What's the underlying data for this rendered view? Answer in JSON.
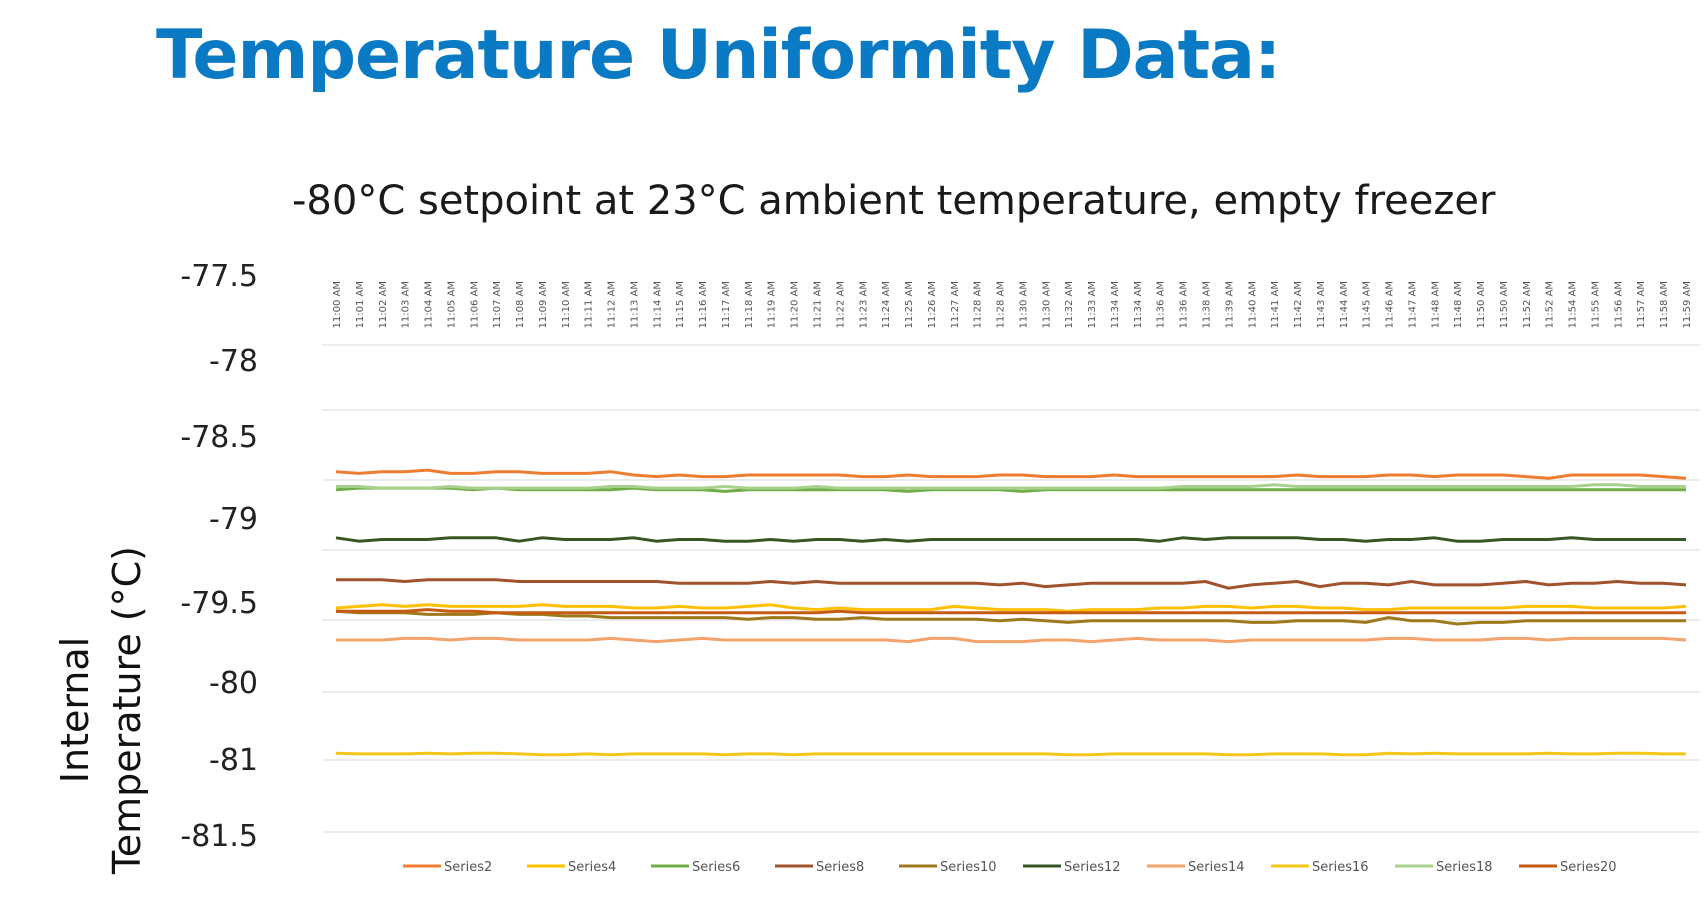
{
  "page": {
    "title": "Temperature Uniformity Data:"
  },
  "chart_data": {
    "type": "line",
    "title": "-80°C setpoint at 23°C ambient temperature, empty freezer",
    "ylabel_lines": [
      "Internal",
      "Temperature (°C)"
    ],
    "xlabel": "",
    "ylim": [
      -81.5,
      -77.5
    ],
    "y_ticks": [
      -77.5,
      -78,
      -78.5,
      -79,
      -79.5,
      -80,
      -81,
      -81.5
    ],
    "y_tick_labels": [
      "-77.5",
      "-78",
      "-78.5",
      "-79",
      "-79.5",
      "-80",
      "-81",
      "-81.5"
    ],
    "grid": true,
    "legend_position": "bottom",
    "x": [
      "11:00 AM",
      "11:01 AM",
      "11:02 AM",
      "11:03 AM",
      "11:04 AM",
      "11:05 AM",
      "11:06 AM",
      "11:07 AM",
      "11:08 AM",
      "11:09 AM",
      "11:10 AM",
      "11:11 AM",
      "11:12 AM",
      "11:13 AM",
      "11:14 AM",
      "11:15 AM",
      "11:16 AM",
      "11:17 AM",
      "11:18 AM",
      "11:19 AM",
      "11:20 AM",
      "11:21 AM",
      "11:22 AM",
      "11:23 AM",
      "11:24 AM",
      "11:25 AM",
      "11:26 AM",
      "11:27 AM",
      "11:28 AM",
      "11:28 AM",
      "11:30 AM",
      "11:30 AM",
      "11:32 AM",
      "11:33 AM",
      "11:34 AM",
      "11:34 AM",
      "11:36 AM",
      "11:36 AM",
      "11:38 AM",
      "11:39 AM",
      "11:40 AM",
      "11:41 AM",
      "11:42 AM",
      "11:43 AM",
      "11:44 AM",
      "11:45 AM",
      "11:46 AM",
      "11:47 AM",
      "11:48 AM",
      "11:48 AM",
      "11:50 AM",
      "11:50 AM",
      "11:52 AM",
      "11:52 AM",
      "11:54 AM",
      "11:55 AM",
      "11:56 AM",
      "11:57 AM",
      "11:58 AM",
      "11:59 AM"
    ],
    "series": [
      {
        "name": "Series2",
        "color": "#ed7d31",
        "values": [
          -78.73,
          -78.74,
          -78.73,
          -78.73,
          -78.72,
          -78.74,
          -78.74,
          -78.73,
          -78.73,
          -78.74,
          -78.74,
          -78.74,
          -78.73,
          -78.75,
          -78.76,
          -78.75,
          -78.76,
          -78.76,
          -78.75,
          -78.75,
          -78.75,
          -78.75,
          -78.75,
          -78.76,
          -78.76,
          -78.75,
          -78.76,
          -78.76,
          -78.76,
          -78.75,
          -78.75,
          -78.76,
          -78.76,
          -78.76,
          -78.75,
          -78.76,
          -78.76,
          -78.76,
          -78.76,
          -78.76,
          -78.76,
          -78.76,
          -78.75,
          -78.76,
          -78.76,
          -78.76,
          -78.75,
          -78.75,
          -78.76,
          -78.75,
          -78.75,
          -78.75,
          -78.76,
          -78.77,
          -78.75,
          -78.75,
          -78.75,
          -78.75,
          -78.76,
          -78.77
        ]
      },
      {
        "name": "Series4",
        "color": "#ffc000",
        "values": [
          -79.55,
          -79.54,
          -79.53,
          -79.54,
          -79.53,
          -79.54,
          -79.54,
          -79.54,
          -79.54,
          -79.53,
          -79.54,
          -79.54,
          -79.54,
          -79.55,
          -79.55,
          -79.54,
          -79.55,
          -79.55,
          -79.54,
          -79.53,
          -79.55,
          -79.56,
          -79.55,
          -79.56,
          -79.56,
          -79.56,
          -79.56,
          -79.54,
          -79.55,
          -79.56,
          -79.56,
          -79.56,
          -79.57,
          -79.56,
          -79.56,
          -79.56,
          -79.55,
          -79.55,
          -79.54,
          -79.54,
          -79.55,
          -79.54,
          -79.54,
          -79.55,
          -79.55,
          -79.56,
          -79.56,
          -79.55,
          -79.55,
          -79.55,
          -79.55,
          -79.55,
          -79.54,
          -79.54,
          -79.54,
          -79.55,
          -79.55,
          -79.55,
          -79.55,
          -79.54
        ]
      },
      {
        "name": "Series6",
        "color": "#70ad47",
        "values": [
          -78.84,
          -78.83,
          -78.83,
          -78.83,
          -78.83,
          -78.83,
          -78.84,
          -78.83,
          -78.84,
          -78.84,
          -78.84,
          -78.84,
          -78.84,
          -78.83,
          -78.84,
          -78.84,
          -78.84,
          -78.85,
          -78.84,
          -78.84,
          -78.84,
          -78.84,
          -78.84,
          -78.84,
          -78.84,
          -78.85,
          -78.84,
          -78.84,
          -78.84,
          -78.84,
          -78.85,
          -78.84,
          -78.84,
          -78.84,
          -78.84,
          -78.84,
          -78.84,
          -78.84,
          -78.84,
          -78.84,
          -78.84,
          -78.84,
          -78.84,
          -78.84,
          -78.84,
          -78.84,
          -78.84,
          -78.84,
          -78.84,
          -78.84,
          -78.84,
          -78.84,
          -78.84,
          -78.84,
          -78.84,
          -78.84,
          -78.84,
          -78.84,
          -78.84,
          -78.84
        ]
      },
      {
        "name": "Series8",
        "color": "#a0522d",
        "values": [
          -79.38,
          -79.38,
          -79.38,
          -79.39,
          -79.38,
          -79.38,
          -79.38,
          -79.38,
          -79.39,
          -79.39,
          -79.39,
          -79.39,
          -79.39,
          -79.39,
          -79.39,
          -79.4,
          -79.4,
          -79.4,
          -79.4,
          -79.39,
          -79.4,
          -79.39,
          -79.4,
          -79.4,
          -79.4,
          -79.4,
          -79.4,
          -79.4,
          -79.4,
          -79.41,
          -79.4,
          -79.42,
          -79.41,
          -79.4,
          -79.4,
          -79.4,
          -79.4,
          -79.4,
          -79.39,
          -79.43,
          -79.41,
          -79.4,
          -79.39,
          -79.42,
          -79.4,
          -79.4,
          -79.41,
          -79.39,
          -79.41,
          -79.41,
          -79.41,
          -79.4,
          -79.39,
          -79.41,
          -79.4,
          -79.4,
          -79.39,
          -79.4,
          -79.4,
          -79.41
        ]
      },
      {
        "name": "Series10",
        "color": "#9c7a1c",
        "values": [
          -79.57,
          -79.58,
          -79.58,
          -79.58,
          -79.59,
          -79.59,
          -79.59,
          -79.58,
          -79.59,
          -79.59,
          -79.6,
          -79.6,
          -79.61,
          -79.61,
          -79.61,
          -79.61,
          -79.61,
          -79.61,
          -79.62,
          -79.61,
          -79.61,
          -79.62,
          -79.62,
          -79.61,
          -79.62,
          -79.62,
          -79.62,
          -79.62,
          -79.62,
          -79.63,
          -79.62,
          -79.63,
          -79.64,
          -79.63,
          -79.63,
          -79.63,
          -79.63,
          -79.63,
          -79.63,
          -79.63,
          -79.64,
          -79.64,
          -79.63,
          -79.63,
          -79.63,
          -79.64,
          -79.61,
          -79.63,
          -79.63,
          -79.65,
          -79.64,
          -79.64,
          -79.63,
          -79.63,
          -79.63,
          -79.63,
          -79.63,
          -79.63,
          -79.63,
          -79.63
        ]
      },
      {
        "name": "Series12",
        "color": "#375623",
        "values": [
          -79.13,
          -79.15,
          -79.14,
          -79.14,
          -79.14,
          -79.13,
          -79.13,
          -79.13,
          -79.15,
          -79.13,
          -79.14,
          -79.14,
          -79.14,
          -79.13,
          -79.15,
          -79.14,
          -79.14,
          -79.15,
          -79.15,
          -79.14,
          -79.15,
          -79.14,
          -79.14,
          -79.15,
          -79.14,
          -79.15,
          -79.14,
          -79.14,
          -79.14,
          -79.14,
          -79.14,
          -79.14,
          -79.14,
          -79.14,
          -79.14,
          -79.14,
          -79.15,
          -79.13,
          -79.14,
          -79.13,
          -79.13,
          -79.13,
          -79.13,
          -79.14,
          -79.14,
          -79.15,
          -79.14,
          -79.14,
          -79.13,
          -79.15,
          -79.15,
          -79.14,
          -79.14,
          -79.14,
          -79.13,
          -79.14,
          -79.14,
          -79.14,
          -79.14,
          -79.14
        ]
      },
      {
        "name": "Series14",
        "color": "#f4a26e",
        "values": [
          -79.75,
          -79.75,
          -79.75,
          -79.74,
          -79.74,
          -79.75,
          -79.74,
          -79.74,
          -79.75,
          -79.75,
          -79.75,
          -79.75,
          -79.74,
          -79.75,
          -79.76,
          -79.75,
          -79.74,
          -79.75,
          -79.75,
          -79.75,
          -79.75,
          -79.75,
          -79.75,
          -79.75,
          -79.75,
          -79.76,
          -79.74,
          -79.74,
          -79.76,
          -79.76,
          -79.76,
          -79.75,
          -79.75,
          -79.76,
          -79.75,
          -79.74,
          -79.75,
          -79.75,
          -79.75,
          -79.76,
          -79.75,
          -79.75,
          -79.75,
          -79.75,
          -79.75,
          -79.75,
          -79.74,
          -79.74,
          -79.75,
          -79.75,
          -79.75,
          -79.74,
          -79.74,
          -79.75,
          -79.74,
          -79.74,
          -79.74,
          -79.74,
          -79.74,
          -79.75
        ]
      },
      {
        "name": "Series16",
        "color": "#f5c518",
        "values": [
          -80.95,
          -80.96,
          -80.96,
          -80.96,
          -80.95,
          -80.96,
          -80.95,
          -80.95,
          -80.96,
          -80.97,
          -80.97,
          -80.96,
          -80.97,
          -80.96,
          -80.96,
          -80.96,
          -80.96,
          -80.97,
          -80.96,
          -80.96,
          -80.97,
          -80.96,
          -80.96,
          -80.96,
          -80.96,
          -80.96,
          -80.96,
          -80.96,
          -80.96,
          -80.96,
          -80.96,
          -80.96,
          -80.97,
          -80.97,
          -80.96,
          -80.96,
          -80.96,
          -80.96,
          -80.96,
          -80.97,
          -80.97,
          -80.96,
          -80.96,
          -80.96,
          -80.97,
          -80.97,
          -80.95,
          -80.96,
          -80.95,
          -80.96,
          -80.96,
          -80.96,
          -80.96,
          -80.95,
          -80.96,
          -80.96,
          -80.95,
          -80.95,
          -80.96,
          -80.96
        ]
      },
      {
        "name": "Series18",
        "color": "#a9d18e",
        "values": [
          -78.82,
          -78.82,
          -78.83,
          -78.83,
          -78.83,
          -78.82,
          -78.83,
          -78.83,
          -78.83,
          -78.83,
          -78.83,
          -78.83,
          -78.82,
          -78.82,
          -78.83,
          -78.83,
          -78.83,
          -78.82,
          -78.83,
          -78.83,
          -78.83,
          -78.82,
          -78.83,
          -78.83,
          -78.83,
          -78.83,
          -78.83,
          -78.83,
          -78.83,
          -78.83,
          -78.83,
          -78.83,
          -78.83,
          -78.83,
          -78.83,
          -78.83,
          -78.83,
          -78.82,
          -78.82,
          -78.82,
          -78.82,
          -78.81,
          -78.82,
          -78.82,
          -78.82,
          -78.82,
          -78.82,
          -78.82,
          -78.82,
          -78.82,
          -78.82,
          -78.82,
          -78.82,
          -78.82,
          -78.82,
          -78.81,
          -78.81,
          -78.82,
          -78.82,
          -78.82
        ]
      },
      {
        "name": "Series20",
        "color": "#c55a11",
        "values": [
          -79.57,
          -79.57,
          -79.57,
          -79.57,
          -79.56,
          -79.57,
          -79.57,
          -79.58,
          -79.58,
          -79.58,
          -79.58,
          -79.58,
          -79.58,
          -79.58,
          -79.58,
          -79.58,
          -79.58,
          -79.58,
          -79.58,
          -79.58,
          -79.58,
          -79.58,
          -79.57,
          -79.58,
          -79.58,
          -79.58,
          -79.58,
          -79.58,
          -79.58,
          -79.58,
          -79.58,
          -79.58,
          -79.58,
          -79.58,
          -79.58,
          -79.58,
          -79.58,
          -79.58,
          -79.58,
          -79.58,
          -79.58,
          -79.58,
          -79.58,
          -79.58,
          -79.58,
          -79.58,
          -79.58,
          -79.58,
          -79.58,
          -79.58,
          -79.58,
          -79.58,
          -79.58,
          -79.58,
          -79.58,
          -79.58,
          -79.58,
          -79.58,
          -79.58,
          -79.58
        ]
      }
    ]
  }
}
